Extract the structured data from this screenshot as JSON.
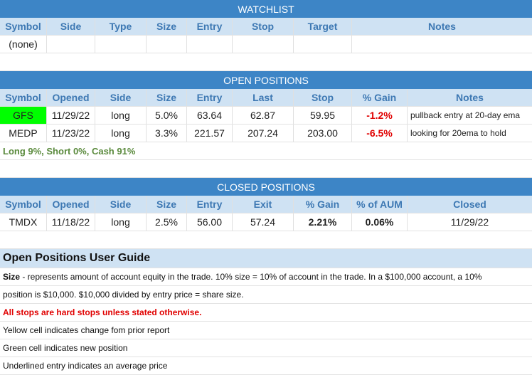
{
  "watchlist": {
    "title": "WATCHLIST",
    "headers": [
      "Symbol",
      "Side",
      "Type",
      "Size",
      "Entry",
      "Stop",
      "Target",
      "Notes"
    ],
    "empty_text": "(none)"
  },
  "open_positions": {
    "title": "OPEN POSITIONS",
    "headers": [
      "Symbol",
      "Opened",
      "Side",
      "Size",
      "Entry",
      "Last",
      "Stop",
      "% Gain",
      "Notes"
    ],
    "rows": [
      {
        "symbol": "GFS",
        "opened": "11/29/22",
        "side": "long",
        "size": "5.0%",
        "entry": "63.64",
        "last": "62.87",
        "stop": "59.95",
        "gain": "-1.2%",
        "notes": "pullback entry at 20-day ema"
      },
      {
        "symbol": "MEDP",
        "opened": "11/23/22",
        "side": "long",
        "size": "3.3%",
        "entry": "221.57",
        "last": "207.24",
        "stop": "203.00",
        "gain": "-6.5%",
        "notes": "looking for 20ema to hold"
      }
    ],
    "summary": "Long 9%, Short 0%, Cash 91%"
  },
  "closed_positions": {
    "title": "CLOSED POSITIONS",
    "headers": [
      "Symbol",
      "Opened",
      "Side",
      "Size",
      "Entry",
      "Exit",
      "% Gain",
      "% of AUM",
      "Closed"
    ],
    "rows": [
      {
        "symbol": "TMDX",
        "opened": "11/18/22",
        "side": "long",
        "size": "2.5%",
        "entry": "56.00",
        "exit": "57.24",
        "gain": "2.21%",
        "aum": "0.06%",
        "closed": "11/29/22"
      }
    ]
  },
  "guide": {
    "title": "Open Positions User Guide",
    "size_label": "Size",
    "size_text_1": " - represents amount of account equity in the trade.  10% size = 10% of account in the trade.  In a $100,000 account, a 10%",
    "size_text_2": "position is $10,000.  $10,000 divided by entry price = share size.",
    "stops_note": "All stops are hard stops unless stated otherwise.",
    "yellow_note": "Yellow cell indicates change fom prior report",
    "green_note": "Green cell indicates new position",
    "underline_note": "Underlined entry indicates an average price"
  },
  "colors": {
    "header_bar": "#3d85c6",
    "subheader": "#cfe2f3",
    "new_position": "#00ff00",
    "loss": "#e00000",
    "summary": "#5a8a3c"
  }
}
